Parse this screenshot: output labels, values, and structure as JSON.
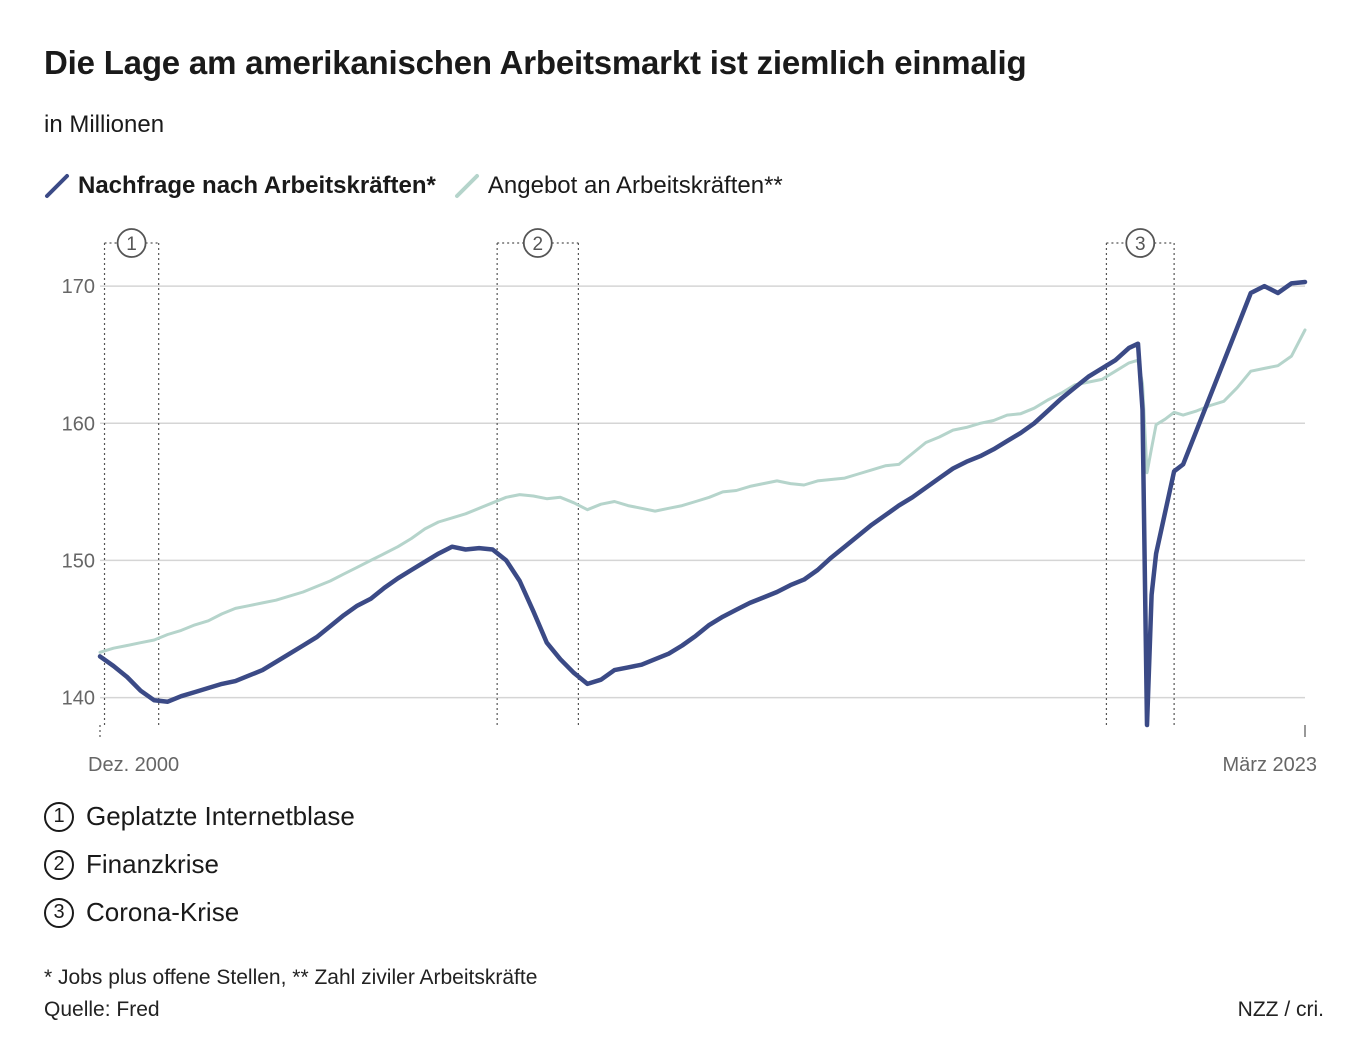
{
  "title": "Die Lage am amerikanischen Arbeitsmarkt ist ziemlich einmalig",
  "subtitle": "in Millionen",
  "legend": {
    "series1": "Nachfrage nach Arbeitskräften*",
    "series2": "Angebot an Arbeitskräften**"
  },
  "colors": {
    "series1": "#3b4a86",
    "series2": "#b5d4cb",
    "grid": "#d5d5d5",
    "marker": "#555555"
  },
  "annotations": [
    {
      "num": "1",
      "label": "Geplatzte Internetblase"
    },
    {
      "num": "2",
      "label": "Finanzkrise"
    },
    {
      "num": "3",
      "label": "Corona-Krise"
    }
  ],
  "footnote": "* Jobs plus offene Stellen, ** Zahl ziviler Arbeitskräfte",
  "source": "Quelle: Fred",
  "credit": "NZZ / cri.",
  "chart_data": {
    "type": "line",
    "x_start_label": "Dez. 2000",
    "x_end_label": "März 2023",
    "xlim": [
      "2000-12",
      "2023-03"
    ],
    "ylim": [
      138,
      173
    ],
    "y_ticks": [
      140,
      150,
      160,
      170
    ],
    "grid": "horizontal",
    "periods": [
      {
        "num": "1",
        "start": "2001-01",
        "end": "2002-01"
      },
      {
        "num": "2",
        "start": "2008-04",
        "end": "2009-10"
      },
      {
        "num": "3",
        "start": "2019-07",
        "end": "2020-10"
      }
    ],
    "series": [
      {
        "name": "Nachfrage nach Arbeitskräften*",
        "points": [
          [
            "2000-12",
            143.0
          ],
          [
            "2001-03",
            142.3
          ],
          [
            "2001-06",
            141.5
          ],
          [
            "2001-09",
            140.5
          ],
          [
            "2001-12",
            139.8
          ],
          [
            "2002-03",
            139.7
          ],
          [
            "2002-06",
            140.1
          ],
          [
            "2002-09",
            140.4
          ],
          [
            "2002-12",
            140.7
          ],
          [
            "2003-03",
            141.0
          ],
          [
            "2003-06",
            141.2
          ],
          [
            "2003-09",
            141.6
          ],
          [
            "2003-12",
            142.0
          ],
          [
            "2004-03",
            142.6
          ],
          [
            "2004-06",
            143.2
          ],
          [
            "2004-09",
            143.8
          ],
          [
            "2004-12",
            144.4
          ],
          [
            "2005-03",
            145.2
          ],
          [
            "2005-06",
            146.0
          ],
          [
            "2005-09",
            146.7
          ],
          [
            "2005-12",
            147.2
          ],
          [
            "2006-03",
            148.0
          ],
          [
            "2006-06",
            148.7
          ],
          [
            "2006-09",
            149.3
          ],
          [
            "2006-12",
            149.9
          ],
          [
            "2007-03",
            150.5
          ],
          [
            "2007-06",
            151.0
          ],
          [
            "2007-09",
            150.8
          ],
          [
            "2007-12",
            150.9
          ],
          [
            "2008-03",
            150.8
          ],
          [
            "2008-06",
            150.0
          ],
          [
            "2008-09",
            148.5
          ],
          [
            "2008-12",
            146.3
          ],
          [
            "2009-03",
            144.0
          ],
          [
            "2009-06",
            142.8
          ],
          [
            "2009-09",
            141.8
          ],
          [
            "2009-12",
            141.0
          ],
          [
            "2010-03",
            141.3
          ],
          [
            "2010-06",
            142.0
          ],
          [
            "2010-09",
            142.2
          ],
          [
            "2010-12",
            142.4
          ],
          [
            "2011-03",
            142.8
          ],
          [
            "2011-06",
            143.2
          ],
          [
            "2011-09",
            143.8
          ],
          [
            "2011-12",
            144.5
          ],
          [
            "2012-03",
            145.3
          ],
          [
            "2012-06",
            145.9
          ],
          [
            "2012-09",
            146.4
          ],
          [
            "2012-12",
            146.9
          ],
          [
            "2013-03",
            147.3
          ],
          [
            "2013-06",
            147.7
          ],
          [
            "2013-09",
            148.2
          ],
          [
            "2013-12",
            148.6
          ],
          [
            "2014-03",
            149.3
          ],
          [
            "2014-06",
            150.2
          ],
          [
            "2014-09",
            151.0
          ],
          [
            "2014-12",
            151.8
          ],
          [
            "2015-03",
            152.6
          ],
          [
            "2015-06",
            153.3
          ],
          [
            "2015-09",
            154.0
          ],
          [
            "2015-12",
            154.6
          ],
          [
            "2016-03",
            155.3
          ],
          [
            "2016-06",
            156.0
          ],
          [
            "2016-09",
            156.7
          ],
          [
            "2016-12",
            157.2
          ],
          [
            "2017-03",
            157.6
          ],
          [
            "2017-06",
            158.1
          ],
          [
            "2017-09",
            158.7
          ],
          [
            "2017-12",
            159.3
          ],
          [
            "2018-03",
            160.0
          ],
          [
            "2018-06",
            160.9
          ],
          [
            "2018-09",
            161.8
          ],
          [
            "2018-12",
            162.6
          ],
          [
            "2019-03",
            163.4
          ],
          [
            "2019-06",
            164.0
          ],
          [
            "2019-09",
            164.6
          ],
          [
            "2019-12",
            165.5
          ],
          [
            "2020-02",
            165.8
          ],
          [
            "2020-03",
            161.0
          ],
          [
            "2020-04",
            138.0
          ],
          [
            "2020-05",
            147.5
          ],
          [
            "2020-06",
            150.5
          ],
          [
            "2020-08",
            153.5
          ],
          [
            "2020-10",
            156.5
          ],
          [
            "2020-12",
            157.0
          ],
          [
            "2021-03",
            159.5
          ],
          [
            "2021-06",
            162.0
          ],
          [
            "2021-09",
            164.5
          ],
          [
            "2021-12",
            167.0
          ],
          [
            "2022-03",
            169.5
          ],
          [
            "2022-06",
            170.0
          ],
          [
            "2022-09",
            169.5
          ],
          [
            "2022-12",
            170.2
          ],
          [
            "2023-03",
            170.3
          ]
        ]
      },
      {
        "name": "Angebot an Arbeitskräften**",
        "points": [
          [
            "2000-12",
            143.3
          ],
          [
            "2001-03",
            143.6
          ],
          [
            "2001-06",
            143.8
          ],
          [
            "2001-09",
            144.0
          ],
          [
            "2001-12",
            144.2
          ],
          [
            "2002-03",
            144.6
          ],
          [
            "2002-06",
            144.9
          ],
          [
            "2002-09",
            145.3
          ],
          [
            "2002-12",
            145.6
          ],
          [
            "2003-03",
            146.1
          ],
          [
            "2003-06",
            146.5
          ],
          [
            "2003-09",
            146.7
          ],
          [
            "2003-12",
            146.9
          ],
          [
            "2004-03",
            147.1
          ],
          [
            "2004-06",
            147.4
          ],
          [
            "2004-09",
            147.7
          ],
          [
            "2004-12",
            148.1
          ],
          [
            "2005-03",
            148.5
          ],
          [
            "2005-06",
            149.0
          ],
          [
            "2005-09",
            149.5
          ],
          [
            "2005-12",
            150.0
          ],
          [
            "2006-03",
            150.5
          ],
          [
            "2006-06",
            151.0
          ],
          [
            "2006-09",
            151.6
          ],
          [
            "2006-12",
            152.3
          ],
          [
            "2007-03",
            152.8
          ],
          [
            "2007-06",
            153.1
          ],
          [
            "2007-09",
            153.4
          ],
          [
            "2007-12",
            153.8
          ],
          [
            "2008-03",
            154.2
          ],
          [
            "2008-06",
            154.6
          ],
          [
            "2008-09",
            154.8
          ],
          [
            "2008-12",
            154.7
          ],
          [
            "2009-03",
            154.5
          ],
          [
            "2009-06",
            154.6
          ],
          [
            "2009-09",
            154.2
          ],
          [
            "2009-12",
            153.7
          ],
          [
            "2010-03",
            154.1
          ],
          [
            "2010-06",
            154.3
          ],
          [
            "2010-09",
            154.0
          ],
          [
            "2010-12",
            153.8
          ],
          [
            "2011-03",
            153.6
          ],
          [
            "2011-06",
            153.8
          ],
          [
            "2011-09",
            154.0
          ],
          [
            "2011-12",
            154.3
          ],
          [
            "2012-03",
            154.6
          ],
          [
            "2012-06",
            155.0
          ],
          [
            "2012-09",
            155.1
          ],
          [
            "2012-12",
            155.4
          ],
          [
            "2013-03",
            155.6
          ],
          [
            "2013-06",
            155.8
          ],
          [
            "2013-09",
            155.6
          ],
          [
            "2013-12",
            155.5
          ],
          [
            "2014-03",
            155.8
          ],
          [
            "2014-06",
            155.9
          ],
          [
            "2014-09",
            156.0
          ],
          [
            "2014-12",
            156.3
          ],
          [
            "2015-03",
            156.6
          ],
          [
            "2015-06",
            156.9
          ],
          [
            "2015-09",
            157.0
          ],
          [
            "2015-12",
            157.8
          ],
          [
            "2016-03",
            158.6
          ],
          [
            "2016-06",
            159.0
          ],
          [
            "2016-09",
            159.5
          ],
          [
            "2016-12",
            159.7
          ],
          [
            "2017-03",
            160.0
          ],
          [
            "2017-06",
            160.2
          ],
          [
            "2017-09",
            160.6
          ],
          [
            "2017-12",
            160.7
          ],
          [
            "2018-03",
            161.1
          ],
          [
            "2018-06",
            161.7
          ],
          [
            "2018-09",
            162.2
          ],
          [
            "2018-12",
            162.8
          ],
          [
            "2019-03",
            163.0
          ],
          [
            "2019-06",
            163.2
          ],
          [
            "2019-09",
            163.8
          ],
          [
            "2019-12",
            164.4
          ],
          [
            "2020-02",
            164.6
          ],
          [
            "2020-03",
            162.9
          ],
          [
            "2020-04",
            156.4
          ],
          [
            "2020-05",
            158.2
          ],
          [
            "2020-06",
            159.9
          ],
          [
            "2020-08",
            160.3
          ],
          [
            "2020-10",
            160.8
          ],
          [
            "2020-12",
            160.6
          ],
          [
            "2021-03",
            160.9
          ],
          [
            "2021-06",
            161.3
          ],
          [
            "2021-09",
            161.6
          ],
          [
            "2021-12",
            162.6
          ],
          [
            "2022-03",
            163.8
          ],
          [
            "2022-06",
            164.0
          ],
          [
            "2022-09",
            164.2
          ],
          [
            "2022-12",
            164.9
          ],
          [
            "2023-03",
            166.8
          ]
        ]
      }
    ]
  }
}
